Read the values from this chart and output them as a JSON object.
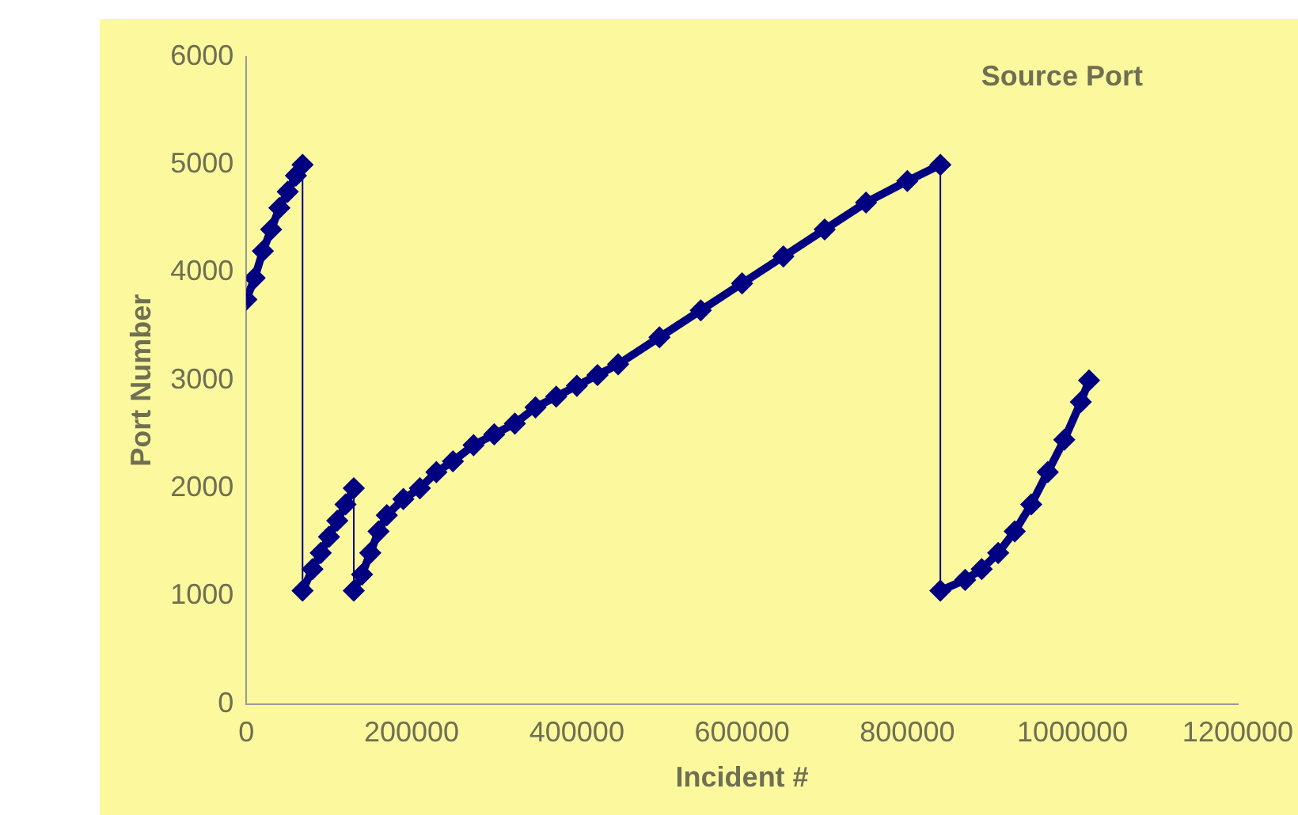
{
  "chart_data": {
    "type": "line",
    "title": "Source Port",
    "xlabel": "Incident #",
    "ylabel": "Port Number",
    "x": [
      0,
      10000,
      20000,
      30000,
      40000,
      50000,
      60000,
      68000,
      68000,
      80000,
      90000,
      100000,
      110000,
      120000,
      130000,
      130000,
      140000,
      150000,
      160000,
      170000,
      190000,
      210000,
      230000,
      250000,
      275000,
      300000,
      325000,
      350000,
      375000,
      400000,
      425000,
      450000,
      500000,
      550000,
      600000,
      650000,
      700000,
      750000,
      800000,
      840000,
      840000,
      870000,
      890000,
      910000,
      930000,
      950000,
      970000,
      990000,
      1010000,
      1020000
    ],
    "series": [
      {
        "color": "#000080",
        "values": [
          3750,
          3950,
          4200,
          4400,
          4600,
          4750,
          4900,
          5000,
          1050,
          1250,
          1400,
          1550,
          1700,
          1850,
          2000,
          1050,
          1200,
          1400,
          1600,
          1750,
          1900,
          2000,
          2150,
          2250,
          2400,
          2500,
          2600,
          2750,
          2850,
          2950,
          3050,
          3150,
          3400,
          3650,
          3900,
          4150,
          4400,
          4650,
          4850,
          5000,
          1050,
          1150,
          1250,
          1400,
          1600,
          1850,
          2150,
          2450,
          2800,
          3000
        ]
      }
    ],
    "xlim": [
      0,
      1200000
    ],
    "xticks": [
      0,
      200000,
      400000,
      600000,
      800000,
      1000000,
      1200000
    ],
    "ylim": [
      0,
      6000
    ],
    "yticks": [
      0,
      1000,
      2000,
      3000,
      4000,
      5000,
      6000
    ],
    "grid": false,
    "legend": false,
    "marker": "diamond",
    "line_style": "solid"
  }
}
